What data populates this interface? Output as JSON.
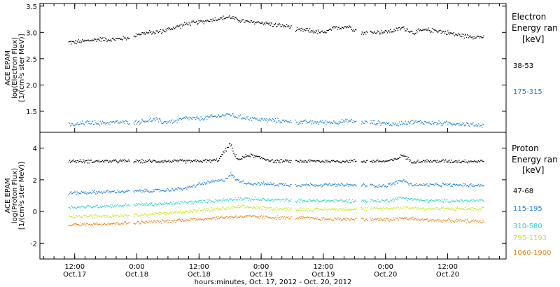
{
  "chart_data": [
    {
      "type": "scatter",
      "panel": "electron",
      "ylabel_lines": [
        "ACE EPAM",
        "log(Electron Flux)",
        "[1/(cm²s ster MeV)]"
      ],
      "ylim": [
        1.1,
        3.55
      ],
      "yticks": [
        1.5,
        2.0,
        2.5,
        3.0,
        3.5
      ],
      "ytick_labels": [
        "1.5",
        "2.0",
        "2.5",
        "3.0",
        "3.5"
      ],
      "legend_title_lines": [
        "Electron",
        "Energy ran",
        "[keV]"
      ],
      "series": [
        {
          "name": "38-53",
          "color": "#000000",
          "x": [
            0.0,
            0.1,
            0.2,
            0.3,
            0.4,
            0.47,
            0.5,
            0.6,
            0.7,
            0.8,
            0.9,
            1.0,
            1.1,
            1.25,
            1.3,
            1.4,
            1.5,
            1.6,
            1.72,
            1.78,
            1.86,
            2.0,
            2.1,
            2.2,
            2.3,
            2.5,
            2.58,
            2.64,
            2.72,
            2.8,
            2.9,
            3.0,
            3.1,
            3.2,
            3.27
          ],
          "y": [
            2.82,
            2.85,
            2.88,
            2.87,
            2.9,
            2.91,
            2.98,
            3.0,
            3.03,
            3.1,
            3.17,
            3.2,
            3.25,
            3.3,
            3.25,
            3.2,
            3.2,
            3.15,
            3.12,
            3.05,
            3.05,
            3.0,
            3.1,
            3.12,
            3.0,
            3.02,
            3.05,
            3.1,
            3.0,
            3.05,
            3.05,
            3.0,
            2.95,
            2.93,
            2.92
          ]
        },
        {
          "name": "175-315",
          "color": "#1a7fd4",
          "x": [
            0.0,
            0.1,
            0.2,
            0.3,
            0.47,
            0.55,
            0.65,
            0.7,
            0.8,
            0.9,
            1.0,
            1.1,
            1.25,
            1.3,
            1.4,
            1.5,
            1.6,
            1.72,
            1.78,
            1.86,
            2.0,
            2.1,
            2.2,
            2.3,
            2.5,
            2.58,
            2.64,
            2.72,
            2.8,
            2.9,
            3.0,
            3.1,
            3.2,
            3.27
          ],
          "y": [
            1.25,
            1.3,
            1.28,
            1.3,
            1.3,
            1.32,
            1.35,
            1.3,
            1.32,
            1.38,
            1.36,
            1.4,
            1.45,
            1.4,
            1.38,
            1.35,
            1.33,
            1.32,
            1.3,
            1.3,
            1.3,
            1.3,
            1.32,
            1.3,
            1.28,
            1.25,
            1.3,
            1.3,
            1.3,
            1.28,
            1.28,
            1.27,
            1.25,
            1.24
          ]
        }
      ]
    },
    {
      "type": "scatter",
      "panel": "proton",
      "ylabel_lines": [
        "ACE EPAM",
        "log(Proton Flux)",
        "[1/(cm²s ster MeV)]"
      ],
      "ylim": [
        -3.0,
        5.0
      ],
      "yticks": [
        -2,
        0,
        2,
        4
      ],
      "ytick_labels": [
        "-2",
        "0",
        "2",
        "4"
      ],
      "legend_title_lines": [
        "Proton",
        "Energy ran",
        "[keV]"
      ],
      "series": [
        {
          "name": "47-68",
          "color": "#000000",
          "x": [
            0.0,
            0.2,
            0.47,
            0.7,
            1.0,
            1.15,
            1.2,
            1.25,
            1.28,
            1.32,
            1.4,
            1.6,
            1.78,
            1.86,
            2.0,
            2.3,
            2.5,
            2.58,
            2.64,
            2.7,
            2.8,
            3.0,
            3.27
          ],
          "y": [
            3.2,
            3.2,
            3.2,
            3.2,
            3.2,
            3.25,
            3.8,
            4.3,
            3.6,
            3.3,
            3.6,
            3.2,
            3.2,
            3.2,
            3.2,
            3.2,
            3.2,
            3.3,
            3.6,
            3.2,
            3.2,
            3.2,
            3.2
          ]
        },
        {
          "name": "115-195",
          "color": "#1a7fd4",
          "x": [
            0.0,
            0.2,
            0.47,
            0.7,
            0.9,
            1.0,
            1.1,
            1.2,
            1.25,
            1.3,
            1.35,
            1.4,
            1.6,
            1.78,
            1.86,
            2.0,
            2.3,
            2.5,
            2.6,
            2.64,
            2.7,
            2.8,
            3.0,
            3.27
          ],
          "y": [
            1.2,
            1.25,
            1.3,
            1.35,
            1.5,
            1.75,
            1.9,
            2.0,
            2.4,
            2.0,
            1.9,
            1.8,
            1.75,
            1.7,
            1.7,
            1.7,
            1.68,
            1.65,
            1.9,
            2.0,
            1.7,
            1.7,
            1.7,
            1.68
          ]
        },
        {
          "name": "310-580",
          "color": "#2ad4c8",
          "x": [
            0.0,
            0.2,
            0.47,
            0.7,
            1.0,
            1.2,
            1.3,
            1.4,
            1.6,
            1.86,
            2.0,
            2.3,
            2.5,
            2.64,
            2.8,
            3.0,
            3.27
          ],
          "y": [
            0.3,
            0.35,
            0.45,
            0.5,
            0.65,
            0.75,
            0.85,
            0.8,
            0.75,
            0.7,
            0.7,
            0.7,
            0.7,
            0.9,
            0.7,
            0.7,
            0.7
          ]
        },
        {
          "name": "795-1193",
          "color": "#c8e61e",
          "x": [
            0.0,
            0.2,
            0.47,
            0.7,
            1.0,
            1.2,
            1.3,
            1.4,
            1.6,
            1.86,
            2.0,
            2.3,
            2.5,
            2.64,
            2.8,
            3.0,
            3.27
          ],
          "y": [
            -0.3,
            -0.25,
            -0.2,
            -0.1,
            0.1,
            0.2,
            0.3,
            0.3,
            0.2,
            0.15,
            0.15,
            0.2,
            0.2,
            0.3,
            0.2,
            0.2,
            0.2
          ]
        },
        {
          "name": "1060-1900",
          "color": "#e8871e",
          "x": [
            0.0,
            0.2,
            0.47,
            0.7,
            1.0,
            1.2,
            1.3,
            1.4,
            1.6,
            1.86,
            2.0,
            2.3,
            2.5,
            2.64,
            2.8,
            3.0,
            3.27
          ],
          "y": [
            -0.8,
            -0.75,
            -0.7,
            -0.6,
            -0.45,
            -0.35,
            -0.3,
            -0.3,
            -0.35,
            -0.4,
            -0.45,
            -0.45,
            -0.5,
            -0.4,
            -0.5,
            -0.55,
            -0.6
          ]
        }
      ]
    }
  ],
  "x_axis": {
    "range_days": [
      -0.28,
      3.47
    ],
    "ticks": [
      {
        "pos": 0.0,
        "top": "12:00",
        "bottom": "Oct.17"
      },
      {
        "pos": 0.5,
        "top": "0:00",
        "bottom": "Oct.18"
      },
      {
        "pos": 1.0,
        "top": "12:00",
        "bottom": "Oct.18"
      },
      {
        "pos": 1.5,
        "top": "0:00",
        "bottom": "Oct.19"
      },
      {
        "pos": 2.0,
        "top": "12:00",
        "bottom": "Oct.19"
      },
      {
        "pos": 2.5,
        "top": "0:00",
        "bottom": "Oct.20"
      },
      {
        "pos": 3.0,
        "top": "12:00",
        "bottom": "Oct.20"
      }
    ],
    "title": "hours:minutes, Oct. 17, 2012 - Oct. 20, 2012"
  }
}
